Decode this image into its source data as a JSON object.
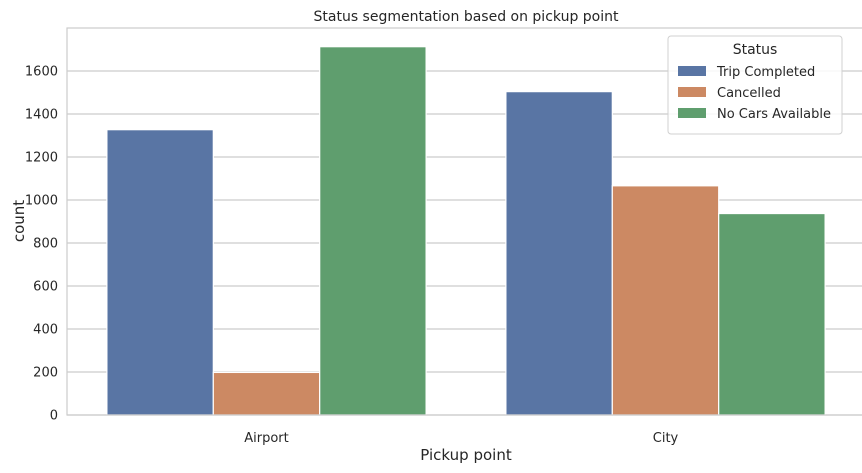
{
  "chart_data": {
    "type": "bar",
    "title": "Status segmentation based on pickup point",
    "xlabel": "Pickup point",
    "ylabel": "count",
    "categories": [
      "Airport",
      "City"
    ],
    "ylim": [
      0,
      1800
    ],
    "yticks": [
      0,
      200,
      400,
      600,
      800,
      1000,
      1200,
      1400,
      1600
    ],
    "grid": true,
    "legend": {
      "title": "Status",
      "position": "top-right"
    },
    "series": [
      {
        "name": "Trip Completed",
        "color": "#5975a4",
        "values": [
          1327,
          1504
        ]
      },
      {
        "name": "Cancelled",
        "color": "#cc8963",
        "values": [
          198,
          1066
        ]
      },
      {
        "name": "No Cars Available",
        "color": "#5f9e6e",
        "values": [
          1713,
          937
        ]
      }
    ]
  }
}
